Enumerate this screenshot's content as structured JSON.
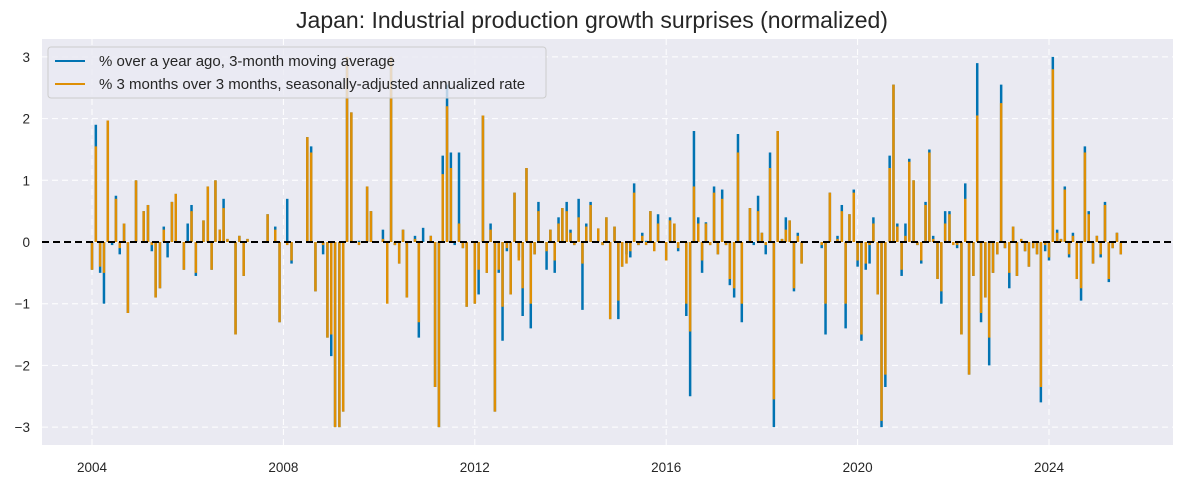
{
  "chart_data": {
    "type": "bar",
    "title": "Japan: Industrial production growth surprises (normalized)",
    "xlabel": "",
    "ylabel": "",
    "xlim": [
      2003.0,
      2026.7
    ],
    "ylim": [
      -3.3,
      3.3
    ],
    "xticks": [
      2004,
      2008,
      2012,
      2016,
      2020,
      2024
    ],
    "xtick_labels": [
      "2004",
      "2008",
      "2012",
      "2016",
      "2020",
      "2024"
    ],
    "yticks": [
      -3,
      -2,
      -1,
      0,
      1,
      2,
      3
    ],
    "ytick_labels": [
      "−3",
      "−2",
      "−1",
      "0",
      "1",
      "2",
      "3"
    ],
    "grid": true,
    "legend_position": "top-left",
    "reference_line": {
      "y": 0,
      "style": "dashed",
      "color": "#000000"
    },
    "series": [
      {
        "name": "% over a year ago, 3-month moving average",
        "color": "#0173b2"
      },
      {
        "name": "% 3 months over 3 months, seasonally-adjusted annualized rate",
        "color": "#de8f05"
      }
    ],
    "points_note": "Each point: [decimal year, series1 value, series2 value]; monthly observations with near-zero months omitted",
    "points": [
      [
        2004.0,
        -0.45,
        -0.45
      ],
      [
        2004.08,
        1.9,
        1.55
      ],
      [
        2004.17,
        -0.5,
        -0.4
      ],
      [
        2004.25,
        -1.0,
        -0.5
      ],
      [
        2004.33,
        1.97,
        1.97
      ],
      [
        2004.42,
        -0.05,
        0.0
      ],
      [
        2004.5,
        0.75,
        0.7
      ],
      [
        2004.58,
        -0.2,
        -0.1
      ],
      [
        2004.67,
        0.3,
        0.3
      ],
      [
        2004.75,
        -1.15,
        -1.15
      ],
      [
        2004.92,
        1.0,
        1.0
      ],
      [
        2005.08,
        0.5,
        0.5
      ],
      [
        2005.17,
        0.6,
        0.6
      ],
      [
        2005.25,
        -0.15,
        -0.05
      ],
      [
        2005.33,
        -0.9,
        -0.9
      ],
      [
        2005.42,
        -0.75,
        -0.75
      ],
      [
        2005.5,
        0.25,
        0.2
      ],
      [
        2005.58,
        -0.25,
        0.0
      ],
      [
        2005.67,
        0.65,
        0.65
      ],
      [
        2005.75,
        0.78,
        0.78
      ],
      [
        2005.92,
        -0.45,
        -0.45
      ],
      [
        2006.0,
        0.3,
        0.0
      ],
      [
        2006.08,
        0.6,
        0.5
      ],
      [
        2006.17,
        -0.55,
        -0.5
      ],
      [
        2006.33,
        0.35,
        0.35
      ],
      [
        2006.42,
        0.9,
        0.9
      ],
      [
        2006.5,
        -0.45,
        -0.45
      ],
      [
        2006.58,
        1.0,
        1.0
      ],
      [
        2006.67,
        0.2,
        0.2
      ],
      [
        2006.75,
        0.7,
        0.55
      ],
      [
        2006.83,
        0.05,
        0.05
      ],
      [
        2007.0,
        -1.5,
        -1.5
      ],
      [
        2007.08,
        0.1,
        0.1
      ],
      [
        2007.17,
        -0.55,
        -0.55
      ],
      [
        2007.25,
        0.05,
        0.05
      ],
      [
        2007.67,
        0.45,
        0.45
      ],
      [
        2007.83,
        0.25,
        0.2
      ],
      [
        2007.92,
        -1.3,
        -1.3
      ],
      [
        2008.08,
        0.7,
        -0.05
      ],
      [
        2008.17,
        -0.35,
        -0.3
      ],
      [
        2008.5,
        1.7,
        1.7
      ],
      [
        2008.58,
        1.55,
        1.45
      ],
      [
        2008.67,
        -0.8,
        -0.8
      ],
      [
        2008.83,
        -0.2,
        -0.05
      ],
      [
        2008.92,
        -1.55,
        -1.55
      ],
      [
        2009.0,
        -1.85,
        -1.5
      ],
      [
        2009.08,
        -3.0,
        -3.0
      ],
      [
        2009.17,
        -3.0,
        -3.0
      ],
      [
        2009.25,
        -2.75,
        -2.75
      ],
      [
        2009.33,
        3.0,
        3.0
      ],
      [
        2009.42,
        2.1,
        2.1
      ],
      [
        2009.58,
        0.02,
        -0.05
      ],
      [
        2009.75,
        0.9,
        0.9
      ],
      [
        2009.83,
        0.5,
        0.5
      ],
      [
        2010.08,
        0.2,
        0.05
      ],
      [
        2010.17,
        -0.75,
        -1.0
      ],
      [
        2010.25,
        3.0,
        3.0
      ],
      [
        2010.33,
        -0.05,
        -0.05
      ],
      [
        2010.42,
        -0.35,
        -0.35
      ],
      [
        2010.5,
        0.2,
        0.2
      ],
      [
        2010.58,
        -0.9,
        -0.9
      ],
      [
        2010.75,
        0.1,
        0.05
      ],
      [
        2010.83,
        -1.55,
        -1.3
      ],
      [
        2010.92,
        0.23,
        0.0
      ],
      [
        2011.08,
        0.1,
        0.1
      ],
      [
        2011.17,
        -2.35,
        -2.35
      ],
      [
        2011.25,
        -3.0,
        -3.0
      ],
      [
        2011.33,
        1.4,
        1.1
      ],
      [
        2011.42,
        2.55,
        2.2
      ],
      [
        2011.5,
        1.45,
        1.2
      ],
      [
        2011.58,
        -0.05,
        0.0
      ],
      [
        2011.67,
        1.45,
        0.3
      ],
      [
        2011.75,
        -0.1,
        -0.1
      ],
      [
        2011.83,
        -1.05,
        -1.05
      ],
      [
        2012.0,
        -1.0,
        -1.0
      ],
      [
        2012.08,
        -0.85,
        -0.45
      ],
      [
        2012.17,
        2.05,
        2.05
      ],
      [
        2012.25,
        -0.5,
        -0.5
      ],
      [
        2012.33,
        0.3,
        0.2
      ],
      [
        2012.42,
        -2.75,
        -2.75
      ],
      [
        2012.5,
        -0.5,
        -0.45
      ],
      [
        2012.58,
        -1.6,
        -1.05
      ],
      [
        2012.67,
        -0.15,
        -0.1
      ],
      [
        2012.75,
        -0.85,
        -0.85
      ],
      [
        2012.83,
        0.8,
        0.8
      ],
      [
        2012.92,
        -0.25,
        -0.3
      ],
      [
        2013.0,
        -1.2,
        -0.75
      ],
      [
        2013.08,
        1.2,
        1.2
      ],
      [
        2013.17,
        -1.4,
        -1.0
      ],
      [
        2013.25,
        -0.2,
        -0.2
      ],
      [
        2013.33,
        0.65,
        0.5
      ],
      [
        2013.5,
        -0.45,
        -0.15
      ],
      [
        2013.58,
        0.2,
        0.2
      ],
      [
        2013.67,
        -0.5,
        -0.3
      ],
      [
        2013.75,
        0.4,
        0.3
      ],
      [
        2013.83,
        0.55,
        0.55
      ],
      [
        2013.92,
        0.65,
        0.5
      ],
      [
        2014.0,
        0.2,
        0.15
      ],
      [
        2014.08,
        -0.05,
        -0.05
      ],
      [
        2014.17,
        0.7,
        0.4
      ],
      [
        2014.25,
        -1.1,
        -0.35
      ],
      [
        2014.33,
        0.3,
        0.25
      ],
      [
        2014.42,
        0.65,
        0.6
      ],
      [
        2014.58,
        0.22,
        0.22
      ],
      [
        2014.67,
        -0.05,
        -0.05
      ],
      [
        2014.75,
        0.4,
        0.4
      ],
      [
        2014.83,
        -1.25,
        -1.25
      ],
      [
        2014.92,
        0.25,
        0.25
      ],
      [
        2015.0,
        -1.25,
        -0.95
      ],
      [
        2015.08,
        -0.4,
        -0.4
      ],
      [
        2015.17,
        -0.2,
        -0.35
      ],
      [
        2015.25,
        -0.25,
        -0.15
      ],
      [
        2015.33,
        0.95,
        0.8
      ],
      [
        2015.42,
        -0.05,
        -0.05
      ],
      [
        2015.5,
        0.15,
        0.1
      ],
      [
        2015.58,
        0.02,
        -0.05
      ],
      [
        2015.67,
        0.5,
        0.5
      ],
      [
        2015.75,
        -0.1,
        -0.15
      ],
      [
        2015.83,
        0.45,
        0.3
      ],
      [
        2016.0,
        -0.3,
        -0.3
      ],
      [
        2016.08,
        0.4,
        0.35
      ],
      [
        2016.17,
        0.3,
        0.3
      ],
      [
        2016.25,
        -0.15,
        -0.1
      ],
      [
        2016.42,
        -1.2,
        -1.0
      ],
      [
        2016.5,
        -2.5,
        -1.45
      ],
      [
        2016.58,
        1.8,
        0.9
      ],
      [
        2016.67,
        0.4,
        0.3
      ],
      [
        2016.75,
        -0.5,
        -0.3
      ],
      [
        2016.83,
        0.32,
        0.3
      ],
      [
        2016.92,
        -0.05,
        -0.05
      ],
      [
        2017.0,
        0.9,
        0.8
      ],
      [
        2017.08,
        -0.2,
        -0.2
      ],
      [
        2017.17,
        0.85,
        0.7
      ],
      [
        2017.25,
        -0.05,
        -0.05
      ],
      [
        2017.33,
        -0.7,
        -0.6
      ],
      [
        2017.42,
        -0.9,
        -0.75
      ],
      [
        2017.5,
        1.75,
        1.45
      ],
      [
        2017.58,
        -1.3,
        -1.0
      ],
      [
        2017.75,
        0.55,
        0.55
      ],
      [
        2017.83,
        -0.05,
        0.0
      ],
      [
        2017.92,
        0.75,
        0.5
      ],
      [
        2018.0,
        0.15,
        0.15
      ],
      [
        2018.08,
        -0.2,
        -0.05
      ],
      [
        2018.17,
        1.45,
        1.2
      ],
      [
        2018.25,
        -3.0,
        -2.55
      ],
      [
        2018.33,
        1.8,
        1.8
      ],
      [
        2018.42,
        0.05,
        0.05
      ],
      [
        2018.5,
        0.4,
        0.2
      ],
      [
        2018.58,
        0.35,
        0.35
      ],
      [
        2018.67,
        -0.8,
        -0.75
      ],
      [
        2018.75,
        0.15,
        0.1
      ],
      [
        2018.83,
        -0.35,
        -0.35
      ],
      [
        2019.25,
        -0.1,
        -0.05
      ],
      [
        2019.33,
        -1.5,
        -1.0
      ],
      [
        2019.42,
        0.8,
        0.8
      ],
      [
        2019.58,
        0.1,
        0.05
      ],
      [
        2019.67,
        0.6,
        0.5
      ],
      [
        2019.75,
        -1.4,
        -1.0
      ],
      [
        2019.83,
        0.45,
        0.45
      ],
      [
        2019.92,
        0.85,
        0.8
      ],
      [
        2020.0,
        -0.4,
        -0.3
      ],
      [
        2020.08,
        -1.6,
        -1.5
      ],
      [
        2020.17,
        -0.45,
        -0.35
      ],
      [
        2020.25,
        -0.35,
        -0.05
      ],
      [
        2020.33,
        0.4,
        0.3
      ],
      [
        2020.42,
        -0.85,
        -0.85
      ],
      [
        2020.5,
        -3.0,
        -2.9
      ],
      [
        2020.58,
        -2.35,
        -2.15
      ],
      [
        2020.67,
        1.4,
        1.2
      ],
      [
        2020.75,
        2.55,
        2.55
      ],
      [
        2020.83,
        0.3,
        0.25
      ],
      [
        2020.92,
        -0.55,
        -0.45
      ],
      [
        2021.0,
        0.3,
        0.1
      ],
      [
        2021.08,
        1.35,
        1.3
      ],
      [
        2021.17,
        1.0,
        1.0
      ],
      [
        2021.25,
        -0.05,
        -0.05
      ],
      [
        2021.33,
        -0.35,
        -0.3
      ],
      [
        2021.42,
        0.65,
        0.6
      ],
      [
        2021.5,
        1.5,
        1.45
      ],
      [
        2021.58,
        0.1,
        0.05
      ],
      [
        2021.67,
        -0.6,
        -0.6
      ],
      [
        2021.75,
        -1.0,
        -0.8
      ],
      [
        2021.83,
        0.5,
        0.3
      ],
      [
        2021.92,
        0.5,
        0.45
      ],
      [
        2022.0,
        0.0,
        -0.05
      ],
      [
        2022.08,
        -0.1,
        -0.05
      ],
      [
        2022.17,
        -1.5,
        -1.5
      ],
      [
        2022.25,
        0.95,
        0.7
      ],
      [
        2022.33,
        -2.15,
        -2.15
      ],
      [
        2022.42,
        -0.55,
        -0.55
      ],
      [
        2022.5,
        2.9,
        2.05
      ],
      [
        2022.58,
        -1.3,
        -1.15
      ],
      [
        2022.67,
        -0.9,
        -0.9
      ],
      [
        2022.75,
        -2.0,
        -1.55
      ],
      [
        2022.83,
        -0.5,
        -0.5
      ],
      [
        2022.92,
        -0.2,
        -0.2
      ],
      [
        2023.0,
        2.55,
        2.25
      ],
      [
        2023.08,
        -0.1,
        -0.1
      ],
      [
        2023.17,
        -0.75,
        -0.5
      ],
      [
        2023.25,
        0.25,
        0.25
      ],
      [
        2023.33,
        -0.55,
        -0.55
      ],
      [
        2023.42,
        0.05,
        0.05
      ],
      [
        2023.5,
        -0.15,
        -0.15
      ],
      [
        2023.58,
        -0.4,
        -0.4
      ],
      [
        2023.67,
        -0.1,
        -0.1
      ],
      [
        2023.75,
        -0.2,
        -0.2
      ],
      [
        2023.83,
        -2.6,
        -2.35
      ],
      [
        2023.92,
        -0.15,
        -0.05
      ],
      [
        2024.0,
        -0.3,
        -0.25
      ],
      [
        2024.08,
        3.0,
        2.8
      ],
      [
        2024.17,
        0.2,
        0.15
      ],
      [
        2024.25,
        0.05,
        0.05
      ],
      [
        2024.33,
        0.9,
        0.85
      ],
      [
        2024.42,
        -0.25,
        -0.2
      ],
      [
        2024.5,
        0.15,
        0.1
      ],
      [
        2024.58,
        -0.6,
        -0.6
      ],
      [
        2024.67,
        -0.95,
        -0.75
      ],
      [
        2024.75,
        1.55,
        1.45
      ],
      [
        2024.83,
        0.5,
        0.45
      ],
      [
        2024.92,
        -0.35,
        -0.35
      ],
      [
        2025.0,
        0.1,
        0.1
      ],
      [
        2025.08,
        -0.25,
        -0.2
      ],
      [
        2025.17,
        0.65,
        0.6
      ],
      [
        2025.25,
        -0.65,
        -0.6
      ],
      [
        2025.33,
        -0.1,
        -0.1
      ],
      [
        2025.42,
        0.15,
        0.15
      ],
      [
        2025.5,
        -0.2,
        -0.2
      ]
    ]
  }
}
